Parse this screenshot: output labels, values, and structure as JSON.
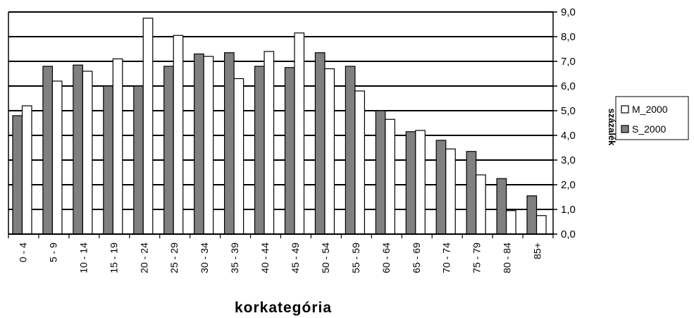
{
  "chart_data": {
    "type": "bar",
    "title": "",
    "xlabel": "korkategória",
    "ylabel": "százalék",
    "ylim": [
      0,
      9
    ],
    "ytick_labels": [
      "0,0",
      "1,0",
      "2,0",
      "3,0",
      "4,0",
      "5,0",
      "6,0",
      "7,0",
      "8,0",
      "9,0"
    ],
    "grid": true,
    "legend_position": "right",
    "categories": [
      "0 - 4",
      "5 - 9",
      "10 - 14",
      "15 - 19",
      "20 - 24",
      "25 - 29",
      "30 - 34",
      "35 - 39",
      "40 - 44",
      "45 - 49",
      "50 - 54",
      "55 - 59",
      "60 - 64",
      "65 - 69",
      "70 - 74",
      "75 - 79",
      "80 - 84",
      "85+"
    ],
    "series": [
      {
        "name": "S_2000",
        "color": "#808080",
        "values": [
          4.8,
          6.8,
          6.85,
          6.0,
          6.0,
          6.8,
          7.3,
          7.35,
          6.8,
          6.75,
          7.35,
          6.8,
          5.0,
          4.15,
          3.8,
          3.35,
          2.25,
          1.55
        ]
      },
      {
        "name": "M_2000",
        "color": "#ffffff",
        "values": [
          5.2,
          6.2,
          6.6,
          7.1,
          8.75,
          8.05,
          7.2,
          6.3,
          7.4,
          8.15,
          6.7,
          5.8,
          4.65,
          4.2,
          3.45,
          2.4,
          0.95,
          0.75
        ]
      }
    ],
    "legend": [
      {
        "name": "M_2000",
        "color": "#ffffff"
      },
      {
        "name": "S_2000",
        "color": "#808080"
      }
    ]
  }
}
